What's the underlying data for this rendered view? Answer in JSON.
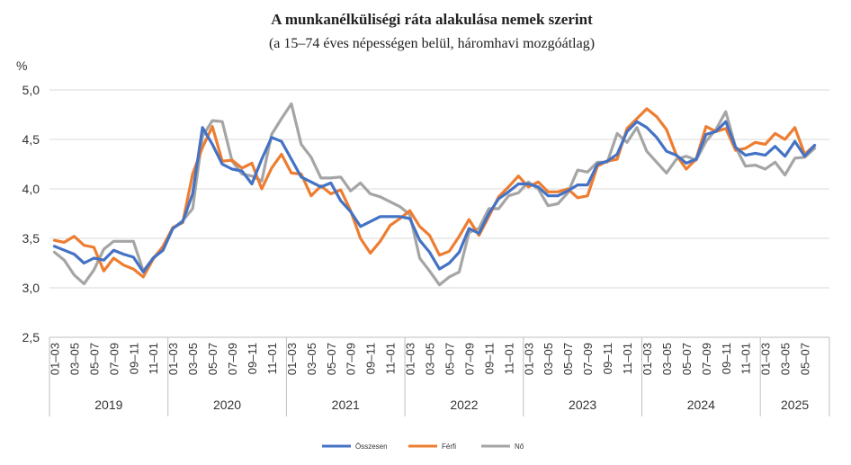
{
  "chart_data": {
    "type": "line",
    "title": "A munkanélküliségi ráta alakulása nemek szerint",
    "subtitle": "(a 15–74 éves népességen belül, háromhavi mozgóátlag)",
    "ylabel": "%",
    "ylim": [
      2.5,
      5.0
    ],
    "yticks": [
      "2,5",
      "3,0",
      "3,5",
      "4,0",
      "4,5",
      "5,0"
    ],
    "years": [
      {
        "label": "2019",
        "months": 12
      },
      {
        "label": "2020",
        "months": 12
      },
      {
        "label": "2021",
        "months": 12
      },
      {
        "label": "2022",
        "months": 12
      },
      {
        "label": "2023",
        "months": 12
      },
      {
        "label": "2024",
        "months": 12
      },
      {
        "label": "2025",
        "months": 7
      }
    ],
    "x_tick_labels": [
      "01–03",
      "03–05",
      "05–07",
      "07–09",
      "09–11",
      "11–01"
    ],
    "x_tick_labels_2025": [
      "01–03",
      "03–05",
      "05–07"
    ],
    "grid": true,
    "legend_position": "bottom",
    "series": [
      {
        "name": "Összesen",
        "color": "#4472c4",
        "values": [
          3.42,
          3.38,
          3.34,
          3.25,
          3.3,
          3.28,
          3.38,
          3.34,
          3.31,
          3.16,
          3.3,
          3.38,
          3.6,
          3.67,
          3.95,
          4.62,
          4.45,
          4.25,
          4.2,
          4.18,
          4.05,
          4.3,
          4.52,
          4.48,
          4.3,
          4.12,
          4.07,
          4.02,
          4.06,
          3.88,
          3.77,
          3.62,
          3.67,
          3.72,
          3.72,
          3.72,
          3.7,
          3.48,
          3.36,
          3.19,
          3.25,
          3.36,
          3.6,
          3.55,
          3.75,
          3.9,
          3.97,
          4.05,
          4.05,
          4.02,
          3.93,
          3.93,
          3.98,
          4.04,
          4.04,
          4.25,
          4.28,
          4.35,
          4.58,
          4.68,
          4.62,
          4.52,
          4.38,
          4.34,
          4.26,
          4.3,
          4.55,
          4.58,
          4.68,
          4.42,
          4.34,
          4.36,
          4.34,
          4.43,
          4.33,
          4.48,
          4.33,
          4.44
        ]
      },
      {
        "name": "Férfi",
        "color": "#ed7d31",
        "values": [
          3.48,
          3.46,
          3.52,
          3.43,
          3.41,
          3.17,
          3.3,
          3.23,
          3.19,
          3.11,
          3.29,
          3.42,
          3.61,
          3.66,
          4.15,
          4.42,
          4.63,
          4.28,
          4.29,
          4.21,
          4.26,
          4.0,
          4.21,
          4.35,
          4.16,
          4.15,
          3.93,
          4.03,
          3.95,
          3.99,
          3.78,
          3.5,
          3.35,
          3.47,
          3.63,
          3.7,
          3.78,
          3.62,
          3.53,
          3.33,
          3.37,
          3.52,
          3.69,
          3.53,
          3.72,
          3.92,
          4.02,
          4.13,
          4.02,
          4.07,
          3.97,
          3.97,
          4.0,
          3.91,
          3.93,
          4.23,
          4.28,
          4.3,
          4.61,
          4.71,
          4.81,
          4.73,
          4.6,
          4.34,
          4.2,
          4.3,
          4.63,
          4.58,
          4.61,
          4.39,
          4.41,
          4.47,
          4.45,
          4.56,
          4.5,
          4.62,
          4.35,
          4.44
        ]
      },
      {
        "name": "Nő",
        "color": "#a5a5a5",
        "values": [
          3.36,
          3.28,
          3.13,
          3.04,
          3.18,
          3.39,
          3.47,
          3.47,
          3.47,
          3.17,
          3.3,
          3.41,
          3.6,
          3.68,
          3.8,
          4.53,
          4.69,
          4.68,
          4.28,
          4.15,
          4.13,
          4.08,
          4.55,
          4.71,
          4.86,
          4.45,
          4.32,
          4.11,
          4.11,
          4.12,
          3.98,
          4.06,
          3.95,
          3.92,
          3.87,
          3.82,
          3.74,
          3.3,
          3.17,
          3.03,
          3.11,
          3.16,
          3.56,
          3.6,
          3.8,
          3.8,
          3.93,
          3.96,
          4.07,
          4.0,
          3.83,
          3.85,
          3.96,
          4.19,
          4.17,
          4.27,
          4.27,
          4.56,
          4.47,
          4.62,
          4.38,
          4.27,
          4.16,
          4.3,
          4.33,
          4.29,
          4.48,
          4.6,
          4.78,
          4.42,
          4.23,
          4.24,
          4.2,
          4.27,
          4.14,
          4.31,
          4.32,
          4.41
        ]
      }
    ]
  }
}
